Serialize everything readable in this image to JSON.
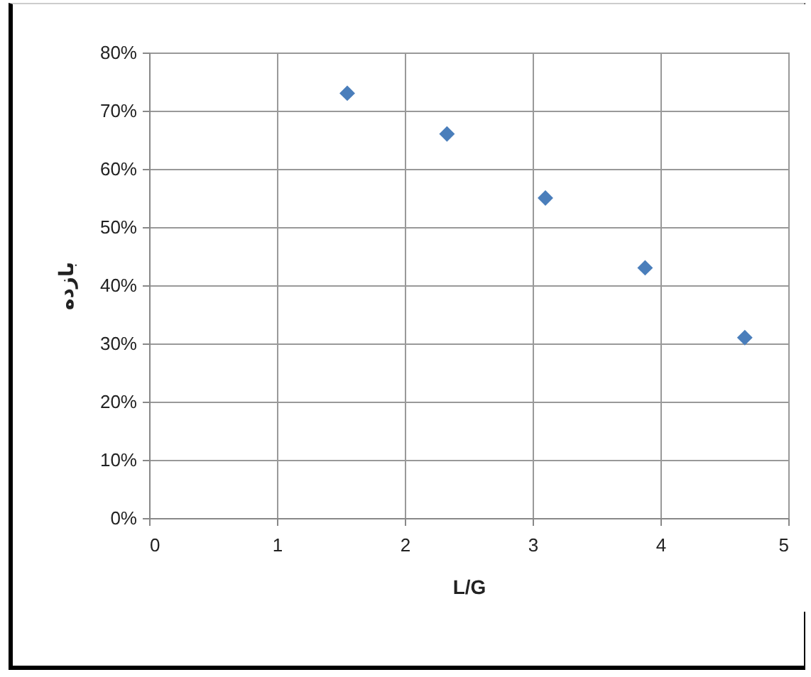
{
  "chart_data": {
    "type": "scatter",
    "xlabel": "L/G",
    "ylabel": "بازده",
    "x": [
      1.55,
      2.33,
      3.1,
      3.88,
      4.66
    ],
    "series": [
      {
        "color": "#4a7ebb",
        "values": [
          73,
          66,
          55,
          43,
          31
        ]
      }
    ],
    "marker": "diamond",
    "grid": true,
    "legend": false,
    "xlim": [
      0,
      5
    ],
    "xticks": [
      0,
      1,
      2,
      3,
      4,
      5
    ],
    "ylim": [
      0,
      80
    ],
    "yticks": [
      {
        "value": 0,
        "label": "0%"
      },
      {
        "value": 10,
        "label": "10%"
      },
      {
        "value": 20,
        "label": "20%"
      },
      {
        "value": 30,
        "label": "30%"
      },
      {
        "value": 40,
        "label": "40%"
      },
      {
        "value": 50,
        "label": "50%"
      },
      {
        "value": 60,
        "label": "60%"
      },
      {
        "value": 70,
        "label": "70%"
      },
      {
        "value": 80,
        "label": "80%"
      }
    ]
  }
}
